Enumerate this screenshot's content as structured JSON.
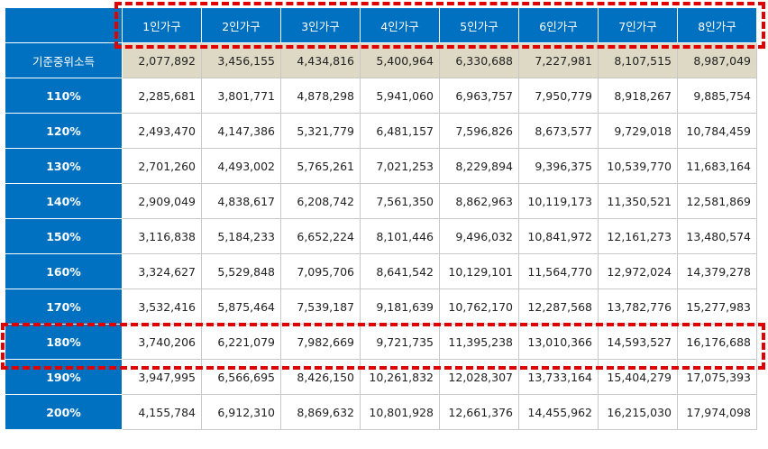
{
  "table": {
    "columns": [
      "1인가구",
      "2인가구",
      "3인가구",
      "4인가구",
      "5인가구",
      "6인가구",
      "7인가구",
      "8인가구"
    ],
    "rows": [
      {
        "label": "기준중위소득",
        "values": [
          "2,077,892",
          "3,456,155",
          "4,434,816",
          "5,400,964",
          "6,330,688",
          "7,227,981",
          "8,107,515",
          "8,987,049"
        ]
      },
      {
        "label": "110%",
        "values": [
          "2,285,681",
          "3,801,771",
          "4,878,298",
          "5,941,060",
          "6,963,757",
          "7,950,779",
          "8,918,267",
          "9,885,754"
        ]
      },
      {
        "label": "120%",
        "values": [
          "2,493,470",
          "4,147,386",
          "5,321,779",
          "6,481,157",
          "7,596,826",
          "8,673,577",
          "9,729,018",
          "10,784,459"
        ]
      },
      {
        "label": "130%",
        "values": [
          "2,701,260",
          "4,493,002",
          "5,765,261",
          "7,021,253",
          "8,229,894",
          "9,396,375",
          "10,539,770",
          "11,683,164"
        ]
      },
      {
        "label": "140%",
        "values": [
          "2,909,049",
          "4,838,617",
          "6,208,742",
          "7,561,350",
          "8,862,963",
          "10,119,173",
          "11,350,521",
          "12,581,869"
        ]
      },
      {
        "label": "150%",
        "values": [
          "3,116,838",
          "5,184,233",
          "6,652,224",
          "8,101,446",
          "9,496,032",
          "10,841,972",
          "12,161,273",
          "13,480,574"
        ]
      },
      {
        "label": "160%",
        "values": [
          "3,324,627",
          "5,529,848",
          "7,095,706",
          "8,641,542",
          "10,129,101",
          "11,564,770",
          "12,972,024",
          "14,379,278"
        ]
      },
      {
        "label": "170%",
        "values": [
          "3,532,416",
          "5,875,464",
          "7,539,187",
          "9,181,639",
          "10,762,170",
          "12,287,568",
          "13,782,776",
          "15,277,983"
        ]
      },
      {
        "label": "180%",
        "values": [
          "3,740,206",
          "6,221,079",
          "7,982,669",
          "9,721,735",
          "11,395,238",
          "13,010,366",
          "14,593,527",
          "16,176,688"
        ]
      },
      {
        "label": "190%",
        "values": [
          "3,947,995",
          "6,566,695",
          "8,426,150",
          "10,261,832",
          "12,028,307",
          "13,733,164",
          "15,404,279",
          "17,075,393"
        ]
      },
      {
        "label": "200%",
        "values": [
          "4,155,784",
          "6,912,310",
          "8,869,632",
          "10,801,928",
          "12,661,376",
          "14,455,962",
          "16,215,030",
          "17,974,098"
        ]
      }
    ]
  }
}
